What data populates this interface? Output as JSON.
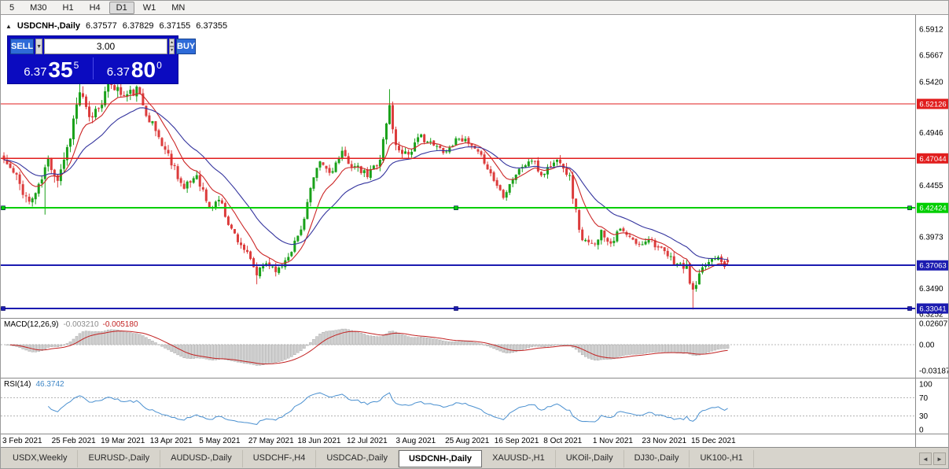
{
  "toolbar": {
    "timeframes": [
      {
        "label": "5",
        "active": false
      },
      {
        "label": "M30",
        "active": false
      },
      {
        "label": "H1",
        "active": false
      },
      {
        "label": "H4",
        "active": false
      },
      {
        "label": "D1",
        "active": true
      },
      {
        "label": "W1",
        "active": false
      },
      {
        "label": "MN",
        "active": false
      }
    ]
  },
  "chart": {
    "title": {
      "collapse_icon": "▲",
      "symbol": "USDCNH-,Daily",
      "open": "6.37577",
      "high": "6.37829",
      "low": "6.37155",
      "close": "6.37355"
    },
    "trade_panel": {
      "sell_label": "SELL",
      "buy_label": "BUY",
      "volume": "3.00",
      "dropdown_icon": "▼",
      "spin_up_icon": "▲",
      "spin_down_icon": "▼",
      "sell_price": {
        "prefix": "6.37",
        "big": "35",
        "sup": "5"
      },
      "buy_price": {
        "prefix": "6.37",
        "big": "80",
        "sup": "0"
      }
    },
    "price_axis": {
      "labels": [
        {
          "text": "6.5912",
          "price": 6.5912
        },
        {
          "text": "6.5667",
          "price": 6.5667
        },
        {
          "text": "6.5420",
          "price": 6.542
        },
        {
          "text": "6.4946",
          "price": 6.4946
        },
        {
          "text": "6.4455",
          "price": 6.4455
        },
        {
          "text": "6.3973",
          "price": 6.3973
        },
        {
          "text": "6.3490",
          "price": 6.349
        },
        {
          "text": "6.3252",
          "price": 6.3252
        }
      ],
      "badges": [
        {
          "text": "6.52126",
          "price": 6.52126,
          "color": "#e11d1d"
        },
        {
          "text": "6.47044",
          "price": 6.47044,
          "color": "#e11d1d"
        },
        {
          "text": "6.42424",
          "price": 6.42424,
          "color": "#00ce00"
        },
        {
          "text": "6.37063",
          "price": 6.37063,
          "color": "#1b1bb0"
        },
        {
          "text": "6.33041",
          "price": 6.33041,
          "color": "#1b1bb0"
        }
      ]
    },
    "levels": [
      {
        "price": 6.52126,
        "color": "#e11d1d",
        "width": 1.3,
        "selected": false
      },
      {
        "price": 6.47044,
        "color": "#e11d1d",
        "width": 1.3,
        "selected": false
      },
      {
        "price": 6.42424,
        "color": "#00ce00",
        "width": 2,
        "selected": true
      },
      {
        "price": 6.37063,
        "color": "#1b1bb0",
        "width": 2,
        "selected": false
      },
      {
        "price": 6.33041,
        "color": "#1b1bb0",
        "width": 2,
        "selected": true
      }
    ],
    "indicators": {
      "macd": {
        "name": "MACD(12,26,9)",
        "value_main": "-0.003210",
        "value_signal": "-0.005180",
        "axis_labels": [
          {
            "text": "0.02607",
            "value": 0.02607
          },
          {
            "text": "0.00",
            "value": 0
          },
          {
            "text": "-0.03187",
            "value": -0.03187
          }
        ]
      },
      "rsi": {
        "name": "RSI(14)",
        "value": "46.3742",
        "axis_labels": [
          {
            "text": "100",
            "value": 100
          },
          {
            "text": "70",
            "value": 70
          },
          {
            "text": "30",
            "value": 30
          },
          {
            "text": "0",
            "value": 0
          }
        ],
        "guide_levels": [
          70,
          30
        ]
      }
    },
    "date_axis": [
      "3 Feb 2021",
      "25 Feb 2021",
      "19 Mar 2021",
      "13 Apr 2021",
      "5 May 2021",
      "27 May 2021",
      "18 Jun 2021",
      "12 Jul 2021",
      "3 Aug 2021",
      "25 Aug 2021",
      "16 Sep 2021",
      "8 Oct 2021",
      "1 Nov 2021",
      "23 Nov 2021",
      "15 Dec 2021"
    ]
  },
  "chart_data": {
    "type": "candlestick",
    "symbol": "USDCNH",
    "timeframe": "Daily",
    "visible_range": {
      "from": "3 Feb 2021",
      "to": "15 Dec 2021"
    },
    "ohlc_last": {
      "open": 6.37577,
      "high": 6.37829,
      "low": 6.37155,
      "close": 6.37355
    },
    "price_range": [
      6.3252,
      6.5912
    ],
    "bars": 230,
    "seed": 11,
    "close_anchors": [
      [
        0,
        6.469
      ],
      [
        4,
        6.452
      ],
      [
        8,
        6.429
      ],
      [
        11,
        6.443
      ],
      [
        14,
        6.469
      ],
      [
        17,
        6.452
      ],
      [
        20,
        6.48
      ],
      [
        24,
        6.533
      ],
      [
        27,
        6.506
      ],
      [
        30,
        6.52
      ],
      [
        34,
        6.541
      ],
      [
        38,
        6.528
      ],
      [
        42,
        6.534
      ],
      [
        46,
        6.508
      ],
      [
        50,
        6.484
      ],
      [
        54,
        6.462
      ],
      [
        57,
        6.441
      ],
      [
        61,
        6.456
      ],
      [
        65,
        6.423
      ],
      [
        68,
        6.433
      ],
      [
        72,
        6.404
      ],
      [
        76,
        6.386
      ],
      [
        80,
        6.362
      ],
      [
        83,
        6.373
      ],
      [
        87,
        6.366
      ],
      [
        91,
        6.386
      ],
      [
        94,
        6.404
      ],
      [
        97,
        6.442
      ],
      [
        100,
        6.467
      ],
      [
        103,
        6.457
      ],
      [
        107,
        6.474
      ],
      [
        111,
        6.462
      ],
      [
        115,
        6.454
      ],
      [
        119,
        6.471
      ],
      [
        122,
        6.519
      ],
      [
        124,
        6.481
      ],
      [
        128,
        6.475
      ],
      [
        132,
        6.491
      ],
      [
        136,
        6.482
      ],
      [
        140,
        6.477
      ],
      [
        144,
        6.491
      ],
      [
        148,
        6.481
      ],
      [
        152,
        6.468
      ],
      [
        155,
        6.45
      ],
      [
        158,
        6.436
      ],
      [
        161,
        6.452
      ],
      [
        164,
        6.463
      ],
      [
        167,
        6.469
      ],
      [
        170,
        6.455
      ],
      [
        173,
        6.464
      ],
      [
        176,
        6.47
      ],
      [
        179,
        6.452
      ],
      [
        181,
        6.42
      ],
      [
        183,
        6.393
      ],
      [
        186,
        6.389
      ],
      [
        189,
        6.402
      ],
      [
        192,
        6.392
      ],
      [
        195,
        6.404
      ],
      [
        198,
        6.396
      ],
      [
        201,
        6.389
      ],
      [
        204,
        6.397
      ],
      [
        207,
        6.387
      ],
      [
        210,
        6.379
      ],
      [
        213,
        6.372
      ],
      [
        216,
        6.368
      ],
      [
        218,
        6.345
      ],
      [
        220,
        6.36
      ],
      [
        222,
        6.371
      ],
      [
        224,
        6.377
      ],
      [
        226,
        6.38
      ],
      [
        228,
        6.371
      ],
      [
        229,
        6.3736
      ]
    ],
    "volatility_anchors": [
      [
        0,
        0.01
      ],
      [
        20,
        0.013
      ],
      [
        40,
        0.011
      ],
      [
        60,
        0.009
      ],
      [
        80,
        0.008
      ],
      [
        100,
        0.007
      ],
      [
        122,
        0.01
      ],
      [
        140,
        0.006
      ],
      [
        160,
        0.006
      ],
      [
        181,
        0.01
      ],
      [
        200,
        0.005
      ],
      [
        218,
        0.009
      ],
      [
        229,
        0.004
      ]
    ],
    "spikes": [
      {
        "i": 13,
        "low": 6.418
      },
      {
        "i": 24,
        "high": 6.546
      },
      {
        "i": 34,
        "high": 6.547
      },
      {
        "i": 80,
        "low": 6.353
      },
      {
        "i": 122,
        "high": 6.535
      },
      {
        "i": 218,
        "low": 6.3295
      }
    ],
    "overlays": [
      {
        "name": "MA fast",
        "period": 10,
        "color": "#cc2626"
      },
      {
        "name": "MA slow",
        "period": 25,
        "color": "#34349e"
      }
    ],
    "colors": {
      "up": "#19a119",
      "down": "#dc3c3c"
    }
  },
  "tabs": {
    "items": [
      {
        "label": "USDX,Weekly",
        "active": false
      },
      {
        "label": "EURUSD-,Daily",
        "active": false
      },
      {
        "label": "AUDUSD-,Daily",
        "active": false
      },
      {
        "label": "USDCHF-,H4",
        "active": false
      },
      {
        "label": "USDCAD-,Daily",
        "active": false
      },
      {
        "label": "USDCNH-,Daily",
        "active": true
      },
      {
        "label": "XAUUSD-,H1",
        "active": false
      },
      {
        "label": "UKOil-,Daily",
        "active": false
      },
      {
        "label": "DJ30-,Daily",
        "active": false
      },
      {
        "label": "UK100-,H1",
        "active": false
      }
    ],
    "scroll_left_icon": "◄",
    "scroll_right_icon": "►"
  }
}
